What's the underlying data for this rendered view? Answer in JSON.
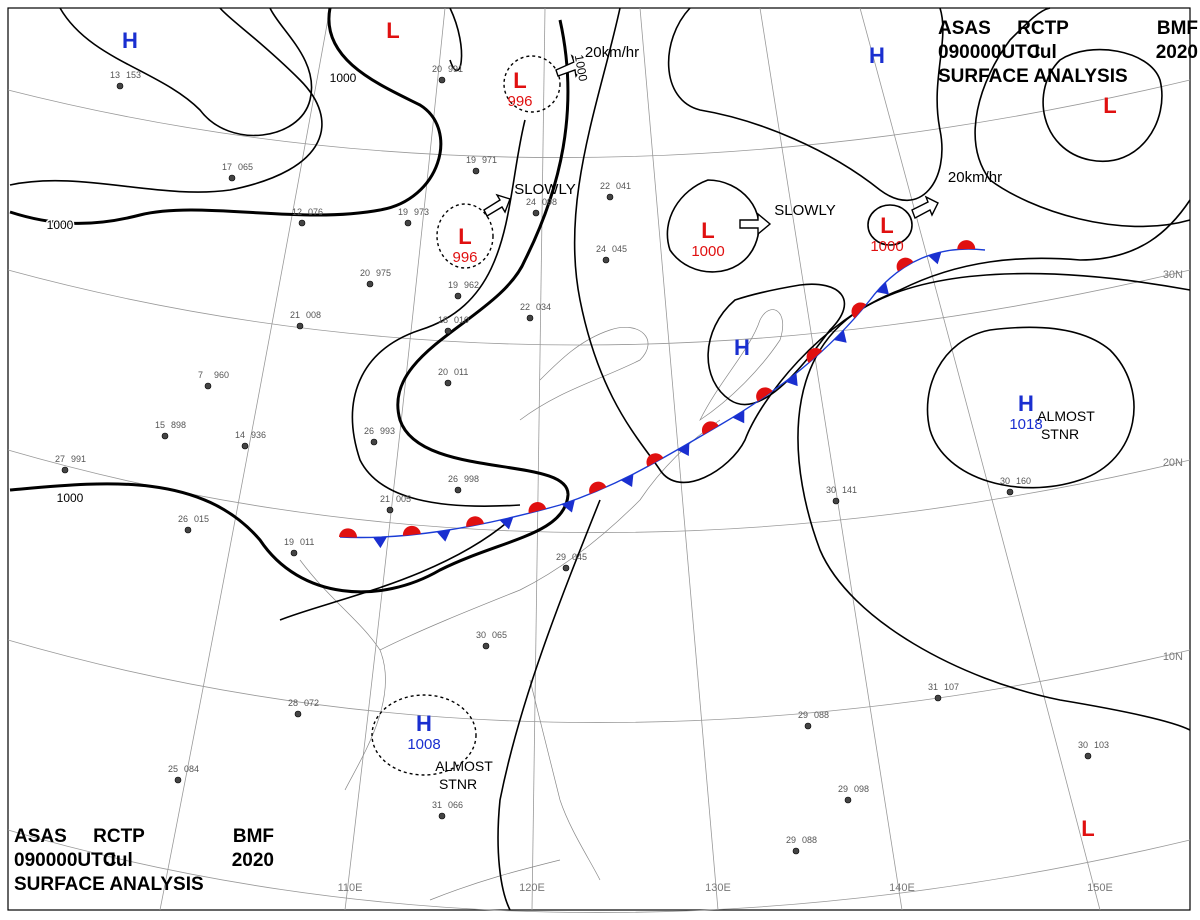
{
  "header_top": {
    "line1": [
      "ASAS",
      "RCTP",
      "BMF"
    ],
    "line2": [
      "090000UTC",
      "Jul",
      "2020"
    ],
    "line3": "SURFACE ANALYSIS"
  },
  "header_bottom": {
    "line1": [
      "ASAS",
      "RCTP",
      "BMF"
    ],
    "line2": [
      "090000UTC",
      "Jul",
      "2020"
    ],
    "line3": "SURFACE ANALYSIS"
  },
  "centers": [
    {
      "type": "H"
    },
    {
      "type": "L"
    },
    {
      "type": "L",
      "pressure": "996"
    },
    {
      "type": "L",
      "pressure": "996"
    },
    {
      "type": "L",
      "pressure": "1000"
    },
    {
      "type": "L",
      "pressure": "1000"
    },
    {
      "type": "H"
    },
    {
      "type": "L"
    },
    {
      "type": "H"
    },
    {
      "type": "H",
      "pressure": "1018",
      "note": [
        "ALMOST",
        "STNR"
      ]
    },
    {
      "type": "H",
      "pressure": "1008",
      "note": [
        "ALMOST",
        "STNR"
      ]
    },
    {
      "type": "L"
    }
  ],
  "motions": [
    "20km/hr",
    "SLOWLY",
    "SLOWLY",
    "20km/hr"
  ],
  "isobar_labels": [
    "1000",
    "1000",
    "1000",
    "1000"
  ],
  "latitudes": [
    "30N",
    "20N",
    "10N"
  ],
  "longitudes": [
    "110E",
    "120E",
    "130E",
    "140E",
    "150E"
  ],
  "stations": [
    [
      "13",
      "153"
    ],
    [
      "17",
      "065"
    ],
    [
      "12",
      "076"
    ],
    [
      "19",
      "973"
    ],
    [
      "20",
      "975"
    ],
    [
      "21",
      "008"
    ],
    [
      "7",
      "960"
    ],
    [
      "14",
      "936"
    ],
    [
      "15",
      "898"
    ],
    [
      "27",
      "991"
    ],
    [
      "26",
      "015"
    ],
    [
      "19",
      "011"
    ],
    [
      "21",
      "005"
    ],
    [
      "26",
      "998"
    ],
    [
      "29",
      "045"
    ],
    [
      "30",
      "065"
    ],
    [
      "28",
      "072"
    ],
    [
      "25",
      "084"
    ],
    [
      "31",
      "066"
    ],
    [
      "29",
      "088"
    ],
    [
      "31",
      "107"
    ],
    [
      "30",
      "103"
    ],
    [
      "29",
      "098"
    ],
    [
      "29",
      "088"
    ],
    [
      "30",
      "160"
    ],
    [
      "30",
      "141"
    ],
    [
      "20",
      "011"
    ],
    [
      "22",
      "034"
    ],
    [
      "24",
      "045"
    ],
    [
      "19",
      "971"
    ],
    [
      "20",
      "991"
    ],
    [
      "22",
      "041"
    ],
    [
      "18",
      "010"
    ],
    [
      "24",
      "098"
    ],
    [
      "19",
      "962"
    ],
    [
      "26",
      "993"
    ]
  ]
}
